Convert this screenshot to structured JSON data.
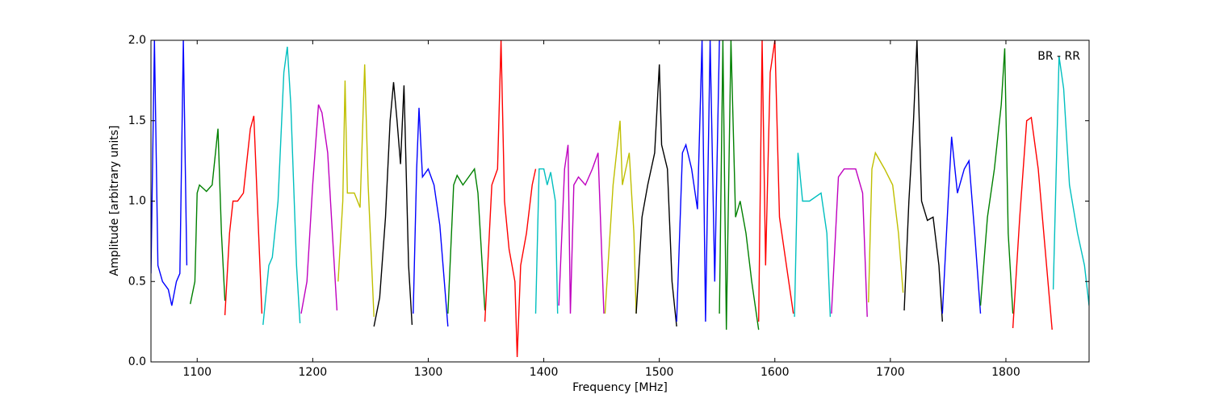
{
  "chart_data": {
    "type": "line",
    "xlabel": "Frequency [MHz]",
    "ylabel": "Amplitude [arbitrary units]",
    "annotation": "BR - RR",
    "xlim": [
      1060,
      1872
    ],
    "ylim": [
      0,
      2
    ],
    "xticks": [
      1100,
      1200,
      1300,
      1400,
      1500,
      1600,
      1700,
      1800
    ],
    "yticks": [
      {
        "value": 0,
        "label": "0.0"
      },
      0.5,
      {
        "value": 1,
        "label": "1.0"
      },
      1.5,
      {
        "value": 2,
        "label": "2.0"
      }
    ],
    "series": [
      {
        "color": "#0000ff",
        "x": [
          1060,
          1063,
          1066,
          1070,
          1075,
          1078,
          1082,
          1085,
          1088,
          1091
        ],
        "values": [
          0.55,
          2.0,
          0.6,
          0.5,
          0.45,
          0.35,
          0.5,
          0.55,
          2.0,
          0.6
        ]
      },
      {
        "color": "#008000",
        "x": [
          1094,
          1098,
          1100,
          1102,
          1108,
          1113,
          1118,
          1121,
          1124
        ],
        "values": [
          0.36,
          0.5,
          1.05,
          1.1,
          1.06,
          1.1,
          1.45,
          0.8,
          0.38
        ]
      },
      {
        "color": "#ff0000",
        "x": [
          1124,
          1128,
          1131,
          1135,
          1140,
          1146,
          1149,
          1152,
          1156
        ],
        "values": [
          0.29,
          0.8,
          1.0,
          1.0,
          1.05,
          1.45,
          1.53,
          1.0,
          0.3
        ]
      },
      {
        "color": "#00bfbf",
        "x": [
          1157,
          1162,
          1165,
          1170,
          1175,
          1178,
          1181,
          1186,
          1189
        ],
        "values": [
          0.23,
          0.6,
          0.65,
          1.0,
          1.8,
          1.96,
          1.6,
          0.6,
          0.24
        ]
      },
      {
        "color": "#bf00bf",
        "x": [
          1190,
          1195,
          1200,
          1205,
          1208,
          1213,
          1217,
          1221
        ],
        "values": [
          0.3,
          0.5,
          1.1,
          1.6,
          1.55,
          1.3,
          0.8,
          0.32
        ]
      },
      {
        "color": "#bfbf00",
        "x": [
          1222,
          1226,
          1228,
          1230,
          1236,
          1241,
          1245,
          1248,
          1253
        ],
        "values": [
          0.5,
          1.0,
          1.75,
          1.05,
          1.05,
          0.96,
          1.85,
          1.1,
          0.28
        ]
      },
      {
        "color": "#000000",
        "x": [
          1253,
          1258,
          1263,
          1267,
          1270,
          1273,
          1276,
          1279,
          1283,
          1286
        ],
        "values": [
          0.22,
          0.4,
          0.9,
          1.5,
          1.74,
          1.5,
          1.23,
          1.72,
          0.6,
          0.23
        ]
      },
      {
        "color": "#0000ff",
        "x": [
          1287,
          1290,
          1292,
          1295,
          1300,
          1305,
          1310,
          1317
        ],
        "values": [
          0.3,
          1.2,
          1.58,
          1.15,
          1.2,
          1.1,
          0.85,
          0.22
        ]
      },
      {
        "color": "#008000",
        "x": [
          1317,
          1322,
          1325,
          1330,
          1335,
          1340,
          1343,
          1349
        ],
        "values": [
          0.3,
          1.1,
          1.16,
          1.1,
          1.15,
          1.2,
          1.05,
          0.32
        ]
      },
      {
        "color": "#ff0000",
        "x": [
          1349,
          1355,
          1360,
          1363,
          1366,
          1370,
          1375,
          1377,
          1380,
          1385,
          1390,
          1393
        ],
        "values": [
          0.25,
          1.1,
          1.2,
          2.0,
          1.0,
          0.7,
          0.5,
          0.03,
          0.6,
          0.8,
          1.1,
          1.2
        ]
      },
      {
        "color": "#00bfbf",
        "x": [
          1393,
          1396,
          1400,
          1403,
          1406,
          1410,
          1412
        ],
        "values": [
          0.3,
          1.2,
          1.2,
          1.1,
          1.18,
          1.0,
          0.3
        ]
      },
      {
        "color": "#bf00bf",
        "x": [
          1413,
          1418,
          1421,
          1423,
          1426,
          1430,
          1436,
          1442,
          1447,
          1452
        ],
        "values": [
          0.35,
          1.2,
          1.35,
          0.3,
          1.1,
          1.15,
          1.1,
          1.2,
          1.3,
          0.3
        ]
      },
      {
        "color": "#bfbf00",
        "x": [
          1453,
          1460,
          1466,
          1468,
          1474,
          1478,
          1480
        ],
        "values": [
          0.3,
          1.1,
          1.5,
          1.1,
          1.3,
          0.8,
          0.3
        ]
      },
      {
        "color": "#000000",
        "x": [
          1480,
          1485,
          1490,
          1496,
          1500,
          1502,
          1507,
          1511,
          1515
        ],
        "values": [
          0.3,
          0.9,
          1.1,
          1.3,
          1.85,
          1.35,
          1.2,
          0.5,
          0.22
        ]
      },
      {
        "color": "#0000ff",
        "x": [
          1515,
          1520,
          1523,
          1528,
          1533,
          1537,
          1540,
          1544,
          1548,
          1552
        ],
        "values": [
          0.25,
          1.3,
          1.35,
          1.2,
          0.95,
          2.0,
          0.25,
          2.0,
          0.5,
          2.0
        ]
      },
      {
        "color": "#008000",
        "x": [
          1552,
          1555,
          1558,
          1562,
          1566,
          1570,
          1575,
          1580,
          1586
        ],
        "values": [
          0.3,
          2.0,
          0.2,
          2.0,
          0.9,
          1.0,
          0.8,
          0.5,
          0.2
        ]
      },
      {
        "color": "#ff0000",
        "x": [
          1586,
          1589,
          1592,
          1596,
          1600,
          1604,
          1610,
          1616
        ],
        "values": [
          0.25,
          2.0,
          0.6,
          1.8,
          2.0,
          0.9,
          0.6,
          0.3
        ]
      },
      {
        "color": "#00bfbf",
        "x": [
          1617,
          1620,
          1624,
          1630,
          1640,
          1645,
          1648
        ],
        "values": [
          0.28,
          1.3,
          1.0,
          1.0,
          1.05,
          0.8,
          0.28
        ]
      },
      {
        "color": "#bf00bf",
        "x": [
          1649,
          1655,
          1660,
          1670,
          1676,
          1680
        ],
        "values": [
          0.3,
          1.15,
          1.2,
          1.2,
          1.05,
          0.28
        ]
      },
      {
        "color": "#bfbf00",
        "x": [
          1681,
          1684,
          1687,
          1695,
          1702,
          1707,
          1711
        ],
        "values": [
          0.37,
          1.2,
          1.3,
          1.2,
          1.1,
          0.8,
          0.43
        ]
      },
      {
        "color": "#000000",
        "x": [
          1712,
          1716,
          1720,
          1723,
          1727,
          1732,
          1737,
          1742,
          1745
        ],
        "values": [
          0.32,
          1.0,
          1.5,
          2.0,
          1.0,
          0.88,
          0.9,
          0.6,
          0.25
        ]
      },
      {
        "color": "#0000ff",
        "x": [
          1745,
          1750,
          1753,
          1758,
          1764,
          1768,
          1773,
          1778
        ],
        "values": [
          0.3,
          1.0,
          1.4,
          1.05,
          1.2,
          1.25,
          0.8,
          0.3
        ]
      },
      {
        "color": "#008000",
        "x": [
          1778,
          1784,
          1790,
          1796,
          1799,
          1802,
          1806
        ],
        "values": [
          0.35,
          0.9,
          1.2,
          1.6,
          1.95,
          0.8,
          0.3
        ]
      },
      {
        "color": "#ff0000",
        "x": [
          1806,
          1812,
          1818,
          1822,
          1828,
          1834,
          1840
        ],
        "values": [
          0.21,
          0.9,
          1.5,
          1.52,
          1.2,
          0.7,
          0.2
        ]
      },
      {
        "color": "#00bfbf",
        "x": [
          1841,
          1846,
          1850,
          1855,
          1862,
          1868,
          1872
        ],
        "values": [
          0.45,
          1.9,
          1.7,
          1.1,
          0.8,
          0.6,
          0.35
        ]
      }
    ]
  }
}
